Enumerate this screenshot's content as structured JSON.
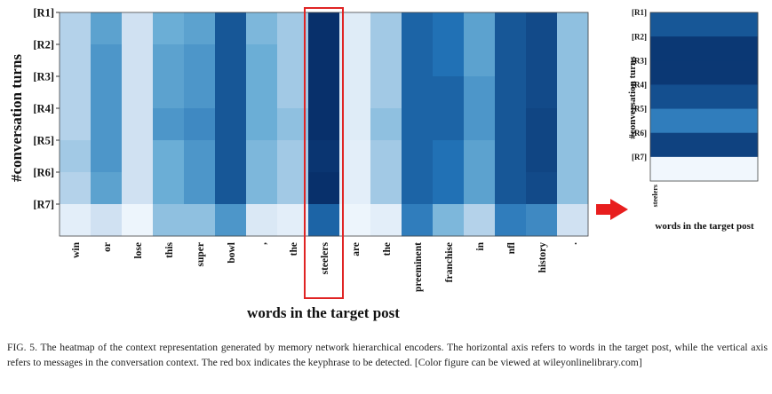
{
  "chart_data": [
    {
      "type": "heatmap",
      "xlabel": "words in the target post",
      "ylabel": "#conversation turns",
      "rows": [
        "[R1]",
        "[R2]",
        "[R3]",
        "[R4]",
        "[R5]",
        "[R6]",
        "[R7]"
      ],
      "columns": [
        "win",
        "or",
        "lose",
        "this",
        "super",
        "bowl",
        ",",
        "the",
        "steelers",
        "are",
        "the",
        "preeminent",
        "franchise",
        "in",
        "nfl",
        "history",
        "."
      ],
      "values": [
        [
          0.3,
          0.55,
          0.2,
          0.5,
          0.55,
          0.85,
          0.45,
          0.35,
          1.0,
          0.12,
          0.35,
          0.8,
          0.75,
          0.55,
          0.85,
          0.9,
          0.4
        ],
        [
          0.3,
          0.6,
          0.2,
          0.55,
          0.6,
          0.85,
          0.5,
          0.35,
          1.0,
          0.12,
          0.35,
          0.8,
          0.75,
          0.55,
          0.85,
          0.9,
          0.4
        ],
        [
          0.3,
          0.6,
          0.2,
          0.55,
          0.6,
          0.85,
          0.5,
          0.35,
          1.0,
          0.12,
          0.35,
          0.8,
          0.8,
          0.6,
          0.85,
          0.9,
          0.4
        ],
        [
          0.3,
          0.6,
          0.2,
          0.6,
          0.65,
          0.85,
          0.5,
          0.4,
          1.0,
          0.12,
          0.4,
          0.8,
          0.8,
          0.6,
          0.85,
          0.92,
          0.4
        ],
        [
          0.35,
          0.6,
          0.2,
          0.5,
          0.6,
          0.85,
          0.45,
          0.35,
          0.98,
          0.1,
          0.35,
          0.8,
          0.75,
          0.55,
          0.85,
          0.92,
          0.4
        ],
        [
          0.3,
          0.55,
          0.2,
          0.5,
          0.6,
          0.85,
          0.45,
          0.35,
          1.0,
          0.1,
          0.35,
          0.8,
          0.75,
          0.55,
          0.85,
          0.9,
          0.4
        ],
        [
          0.1,
          0.2,
          0.05,
          0.4,
          0.4,
          0.6,
          0.15,
          0.1,
          0.8,
          0.05,
          0.1,
          0.7,
          0.45,
          0.3,
          0.7,
          0.65,
          0.2
        ]
      ],
      "highlight": {
        "column": "steelers",
        "color": "#e02424"
      }
    },
    {
      "type": "heatmap",
      "xlabel": "words in the target post",
      "ylabel": "#conversation turns",
      "rows": [
        "[R1]",
        "[R2]",
        "[R3]",
        "[R4]",
        "[R5]",
        "[R6]",
        "[R7]"
      ],
      "columns": [
        "steelers"
      ],
      "values": [
        [
          0.85
        ],
        [
          0.97
        ],
        [
          0.97
        ],
        [
          0.88
        ],
        [
          0.7
        ],
        [
          0.93
        ],
        [
          0.03
        ]
      ]
    }
  ],
  "caption": "FIG. 5. The heatmap of the context representation generated by memory network hierarchical encoders. The horizontal axis refers to words in the target post, while the vertical axis refers to messages in the conversation context. The red box indicates the keyphrase to be detected. [Color figure can be viewed at wileyonlinelibrary.com]",
  "arrow_color": "#e81e1e"
}
